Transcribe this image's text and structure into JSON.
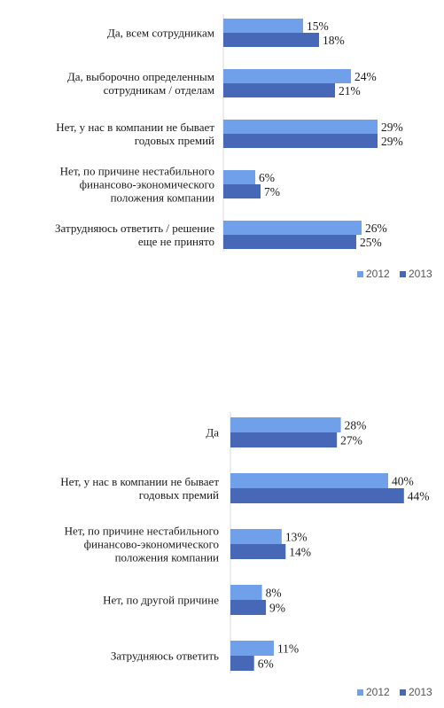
{
  "chart_data": [
    {
      "type": "bar",
      "orientation": "horizontal",
      "categories": [
        "Да, всем сотрудникам",
        "Да, выборочно определенным сотрудникам / отделам",
        "Нет, у нас в компании не бывает годовых премий",
        "Нет, по причине нестабильного финансово-экономического положения компании",
        "Затрудняюсь ответить / решение еще не принято"
      ],
      "category_lines": [
        [
          "Да, всем сотрудникам"
        ],
        [
          "Да, выборочно определенным",
          "сотрудникам / отделам"
        ],
        [
          "Нет, у нас в компании не бывает",
          "годовых премий"
        ],
        [
          "Нет, по причине нестабильного",
          "финансово-экономического",
          "положения компании"
        ],
        [
          "Затрудняюсь ответить / решение",
          "еще не принято"
        ]
      ],
      "series": [
        {
          "name": "2012",
          "values": [
            15,
            24,
            29,
            6,
            26
          ],
          "color": "#6fa0e9"
        },
        {
          "name": "2013",
          "values": [
            18,
            21,
            29,
            7,
            25
          ],
          "color": "#4668b6"
        }
      ],
      "value_format": "percent",
      "legend": "bottom-right",
      "grid": false
    },
    {
      "type": "bar",
      "orientation": "horizontal",
      "categories": [
        "Да",
        "Нет, у нас в компании не бывает годовых премий",
        "Нет, по причине нестабильного финансово-экономического положения компании",
        "Нет, по другой причине",
        "Затрудняюсь ответить"
      ],
      "category_lines": [
        [
          "Да"
        ],
        [
          "Нет, у нас в компании не бывает",
          "годовых премий"
        ],
        [
          "Нет, по причине нестабильного",
          "финансово-экономического",
          "положения компании"
        ],
        [
          "Нет, по другой причине"
        ],
        [
          "Затрудняюсь ответить"
        ]
      ],
      "series": [
        {
          "name": "2012",
          "values": [
            28,
            40,
            13,
            8,
            11
          ],
          "color": "#6fa0e9"
        },
        {
          "name": "2013",
          "values": [
            27,
            44,
            14,
            9,
            6
          ],
          "color": "#4668b6"
        }
      ],
      "value_format": "percent",
      "legend": "bottom-right",
      "grid": false
    }
  ]
}
